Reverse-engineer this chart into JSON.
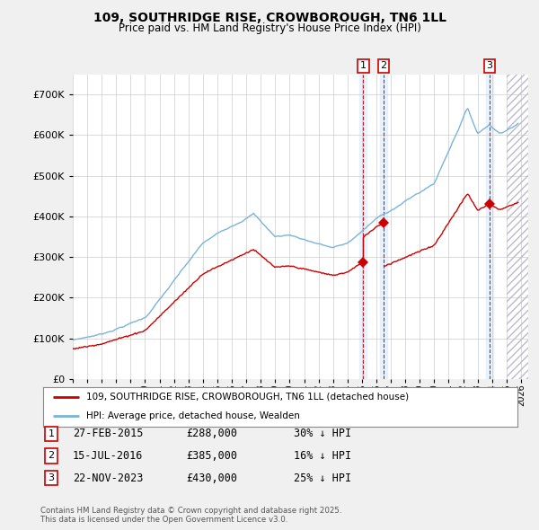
{
  "title": "109, SOUTHRIDGE RISE, CROWBOROUGH, TN6 1LL",
  "subtitle": "Price paid vs. HM Land Registry's House Price Index (HPI)",
  "legend_line1": "109, SOUTHRIDGE RISE, CROWBOROUGH, TN6 1LL (detached house)",
  "legend_line2": "HPI: Average price, detached house, Wealden",
  "hpi_color": "#7ab4d8",
  "price_color": "#cc0000",
  "background_color": "#f0f0f0",
  "plot_bg_color": "#ffffff",
  "grid_color": "#cccccc",
  "sale1_date": "27-FEB-2015",
  "sale1_price": 288000,
  "sale1_hpi": "30% ↓ HPI",
  "sale2_date": "15-JUL-2016",
  "sale2_price": 385000,
  "sale2_hpi": "16% ↓ HPI",
  "sale3_date": "22-NOV-2023",
  "sale3_price": 430000,
  "sale3_hpi": "25% ↓ HPI",
  "footer": "Contains HM Land Registry data © Crown copyright and database right 2025.\nThis data is licensed under the Open Government Licence v3.0.",
  "ylim": [
    0,
    750000
  ],
  "yticks": [
    0,
    100000,
    200000,
    300000,
    400000,
    500000,
    600000,
    700000
  ],
  "xstart": 1995.0,
  "xend": 2026.5
}
